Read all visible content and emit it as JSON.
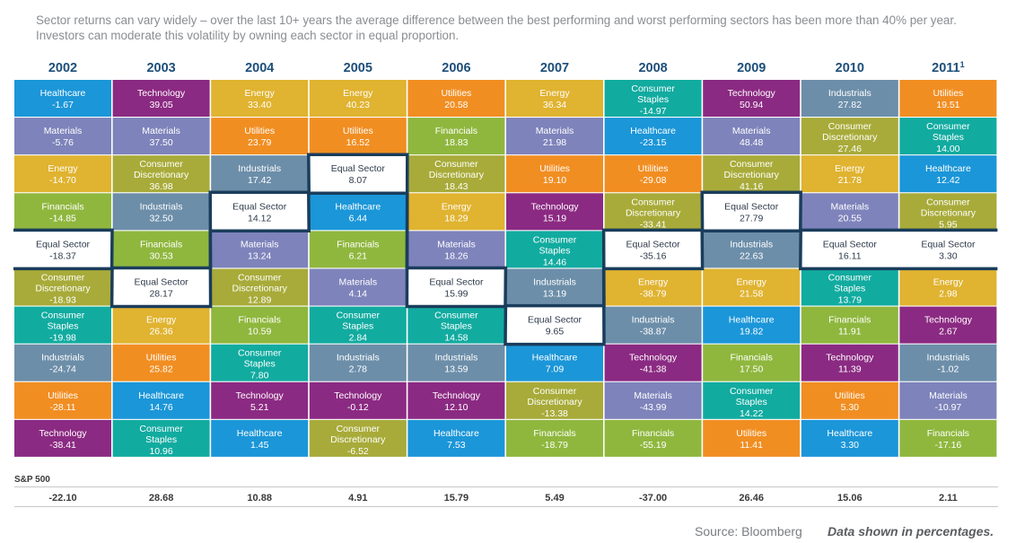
{
  "intro": {
    "line1": "Sector returns can vary widely – over the last 10+ years the average difference between the best performing and worst performing sectors has been more than 40% per year.",
    "line2": "Investors can moderate this volatility by owning each sector in equal proportion."
  },
  "chart_data": {
    "type": "table",
    "years": [
      "2002",
      "2003",
      "2004",
      "2005",
      "2006",
      "2007",
      "2008",
      "2009",
      "2010",
      "2011"
    ],
    "year_superscripts": {
      "2011": "1"
    },
    "sector_colors": {
      "Healthcare": "#1b96d8",
      "Technology": "#8b2a82",
      "Energy": "#e0b330",
      "Materials": "#7e83bb",
      "Utilities": "#f18e22",
      "Financials": "#8fb73e",
      "Industrials": "#6c8ea9",
      "Consumer Staples": "#12aba0",
      "Consumer Discretionary": "#a8ab39",
      "Equal Sector": "#ffffff"
    },
    "columns": [
      {
        "year": "2002",
        "cells": [
          {
            "sector": "Healthcare",
            "value": "-1.67"
          },
          {
            "sector": "Materials",
            "value": "-5.76"
          },
          {
            "sector": "Energy",
            "value": "-14.70"
          },
          {
            "sector": "Financials",
            "value": "-14.85"
          },
          {
            "sector": "Equal Sector",
            "value": "-18.37"
          },
          {
            "sector": "Consumer Discretionary",
            "value": "-18.93"
          },
          {
            "sector": "Consumer Staples",
            "value": "-19.98"
          },
          {
            "sector": "Industrials",
            "value": "-24.74"
          },
          {
            "sector": "Utilities",
            "value": "-28.11"
          },
          {
            "sector": "Technology",
            "value": "-38.41"
          }
        ]
      },
      {
        "year": "2003",
        "cells": [
          {
            "sector": "Technology",
            "value": "39.05"
          },
          {
            "sector": "Materials",
            "value": "37.50"
          },
          {
            "sector": "Consumer Discretionary",
            "value": "36.98"
          },
          {
            "sector": "Industrials",
            "value": "32.50"
          },
          {
            "sector": "Financials",
            "value": "30.53"
          },
          {
            "sector": "Equal Sector",
            "value": "28.17"
          },
          {
            "sector": "Energy",
            "value": "26.36"
          },
          {
            "sector": "Utilities",
            "value": "25.82"
          },
          {
            "sector": "Healthcare",
            "value": "14.76"
          },
          {
            "sector": "Consumer Staples",
            "value": "10.96"
          }
        ]
      },
      {
        "year": "2004",
        "cells": [
          {
            "sector": "Energy",
            "value": "33.40"
          },
          {
            "sector": "Utilities",
            "value": "23.79"
          },
          {
            "sector": "Industrials",
            "value": "17.42"
          },
          {
            "sector": "Equal Sector",
            "value": "14.12"
          },
          {
            "sector": "Materials",
            "value": "13.24"
          },
          {
            "sector": "Consumer Discretionary",
            "value": "12.89"
          },
          {
            "sector": "Financials",
            "value": "10.59"
          },
          {
            "sector": "Consumer Staples",
            "value": "7.80"
          },
          {
            "sector": "Technology",
            "value": "5.21"
          },
          {
            "sector": "Healthcare",
            "value": "1.45"
          }
        ]
      },
      {
        "year": "2005",
        "cells": [
          {
            "sector": "Energy",
            "value": "40.23"
          },
          {
            "sector": "Utilities",
            "value": "16.52"
          },
          {
            "sector": "Equal Sector",
            "value": "8.07"
          },
          {
            "sector": "Healthcare",
            "value": "6.44"
          },
          {
            "sector": "Financials",
            "value": "6.21"
          },
          {
            "sector": "Materials",
            "value": "4.14"
          },
          {
            "sector": "Consumer Staples",
            "value": "2.84"
          },
          {
            "sector": "Industrials",
            "value": "2.78"
          },
          {
            "sector": "Technology",
            "value": "-0.12"
          },
          {
            "sector": "Consumer Discretionary",
            "value": "-6.52"
          }
        ]
      },
      {
        "year": "2006",
        "cells": [
          {
            "sector": "Utilities",
            "value": "20.58"
          },
          {
            "sector": "Financials",
            "value": "18.83"
          },
          {
            "sector": "Consumer Discretionary",
            "value": "18.43"
          },
          {
            "sector": "Energy",
            "value": "18.29"
          },
          {
            "sector": "Materials",
            "value": "18.26"
          },
          {
            "sector": "Equal Sector",
            "value": "15.99"
          },
          {
            "sector": "Consumer Staples",
            "value": "14.58"
          },
          {
            "sector": "Industrials",
            "value": "13.59"
          },
          {
            "sector": "Technology",
            "value": "12.10"
          },
          {
            "sector": "Healthcare",
            "value": "7.53"
          }
        ]
      },
      {
        "year": "2007",
        "cells": [
          {
            "sector": "Energy",
            "value": "36.34"
          },
          {
            "sector": "Materials",
            "value": "21.98"
          },
          {
            "sector": "Utilities",
            "value": "19.10"
          },
          {
            "sector": "Technology",
            "value": "15.19"
          },
          {
            "sector": "Consumer Staples",
            "value": "14.46"
          },
          {
            "sector": "Industrials",
            "value": "13.19"
          },
          {
            "sector": "Equal Sector",
            "value": "9.65"
          },
          {
            "sector": "Healthcare",
            "value": "7.09"
          },
          {
            "sector": "Consumer Discretionary",
            "value": "-13.38"
          },
          {
            "sector": "Financials",
            "value": "-18.79"
          }
        ]
      },
      {
        "year": "2008",
        "cells": [
          {
            "sector": "Consumer Staples",
            "value": "-14.97"
          },
          {
            "sector": "Healthcare",
            "value": "-23.15"
          },
          {
            "sector": "Utilities",
            "value": "-29.08"
          },
          {
            "sector": "Consumer Discretionary",
            "value": "-33.41"
          },
          {
            "sector": "Equal Sector",
            "value": "-35.16"
          },
          {
            "sector": "Energy",
            "value": "-38.79"
          },
          {
            "sector": "Industrials",
            "value": "-38.87"
          },
          {
            "sector": "Technology",
            "value": "-41.38"
          },
          {
            "sector": "Materials",
            "value": "-43.99"
          },
          {
            "sector": "Financials",
            "value": "-55.19"
          }
        ]
      },
      {
        "year": "2009",
        "cells": [
          {
            "sector": "Technology",
            "value": "50.94"
          },
          {
            "sector": "Materials",
            "value": "48.48"
          },
          {
            "sector": "Consumer Discretionary",
            "value": "41.16"
          },
          {
            "sector": "Equal Sector",
            "value": "27.79"
          },
          {
            "sector": "Industrials",
            "value": "22.63"
          },
          {
            "sector": "Energy",
            "value": "21.58"
          },
          {
            "sector": "Healthcare",
            "value": "19.82"
          },
          {
            "sector": "Financials",
            "value": "17.50"
          },
          {
            "sector": "Consumer Staples",
            "value": "14.22"
          },
          {
            "sector": "Utilities",
            "value": "11.41"
          }
        ]
      },
      {
        "year": "2010",
        "cells": [
          {
            "sector": "Industrials",
            "value": "27.82"
          },
          {
            "sector": "Consumer Discretionary",
            "value": "27.46"
          },
          {
            "sector": "Energy",
            "value": "21.78"
          },
          {
            "sector": "Materials",
            "value": "20.55"
          },
          {
            "sector": "Equal Sector",
            "value": "16.11"
          },
          {
            "sector": "Consumer Staples",
            "value": "13.79"
          },
          {
            "sector": "Financials",
            "value": "11.91"
          },
          {
            "sector": "Technology",
            "value": "11.39"
          },
          {
            "sector": "Utilities",
            "value": "5.30"
          },
          {
            "sector": "Healthcare",
            "value": "3.30"
          }
        ]
      },
      {
        "year": "2011",
        "cells": [
          {
            "sector": "Utilities",
            "value": "19.51"
          },
          {
            "sector": "Consumer Staples",
            "value": "14.00"
          },
          {
            "sector": "Healthcare",
            "value": "12.42"
          },
          {
            "sector": "Consumer Discretionary",
            "value": "5.95"
          },
          {
            "sector": "Equal Sector",
            "value": "3.30"
          },
          {
            "sector": "Energy",
            "value": "2.98"
          },
          {
            "sector": "Technology",
            "value": "2.67"
          },
          {
            "sector": "Industrials",
            "value": "-1.02"
          },
          {
            "sector": "Materials",
            "value": "-10.97"
          },
          {
            "sector": "Financials",
            "value": "-17.16"
          }
        ]
      }
    ],
    "sp500": {
      "label": "S&P 500",
      "values": [
        "-22.10",
        "28.68",
        "10.88",
        "4.91",
        "15.79",
        "5.49",
        "-37.00",
        "26.46",
        "15.06",
        "2.11"
      ]
    }
  },
  "footer": {
    "source": "Source: Bloomberg",
    "note": "Data shown in percentages."
  }
}
